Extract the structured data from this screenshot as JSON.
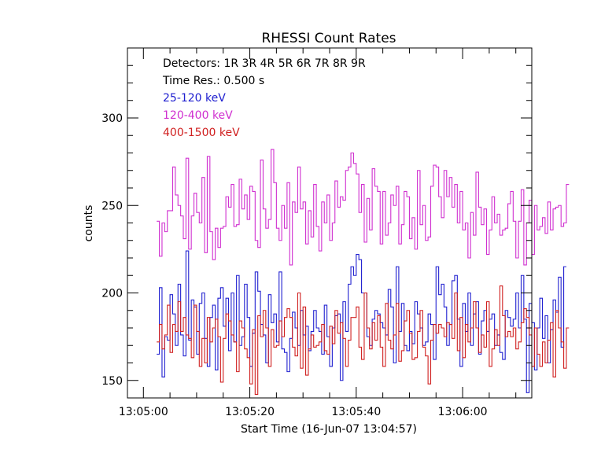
{
  "chart_data": {
    "type": "line",
    "title": "RHESSI Count Rates",
    "xlabel": "Start Time (16-Jun-07 13:04:57)",
    "ylabel": "counts",
    "grid": false,
    "legend_placement": "top-left",
    "x_unit": "seconds since 13:05:00",
    "x_tick_values": [
      0,
      20,
      40,
      60
    ],
    "x_tick_labels": [
      "13:05:00",
      "13:05:20",
      "13:05:40",
      "13:06:00"
    ],
    "xlim": [
      -3,
      73
    ],
    "ylim": [
      140,
      340
    ],
    "y_ticks": [
      150,
      200,
      250,
      300
    ],
    "info_lines": [
      "Detectors:  1R 3R 4R 5R 6R 7R 8R 9R",
      "Time Res.: 0.500 s"
    ],
    "x_start": 2.5,
    "dt": 0.5,
    "series": [
      {
        "name": "25-120 keV",
        "color": "#2020d0",
        "values": [
          165,
          203,
          152,
          175,
          173,
          199,
          188,
          170,
          205,
          176,
          164,
          224,
          173,
          196,
          192,
          165,
          194,
          200,
          174,
          158,
          186,
          193,
          156,
          197,
          203,
          181,
          197,
          167,
          200,
          172,
          210,
          170,
          175,
          205,
          186,
          158,
          177,
          212,
          201,
          182,
          176,
          160,
          199,
          183,
          188,
          172,
          212,
          168,
          166,
          155,
          174,
          189,
          180,
          170,
          190,
          176,
          181,
          167,
          178,
          190,
          180,
          178,
          165,
          193,
          175,
          158,
          180,
          187,
          188,
          150,
          195,
          178,
          205,
          215,
          210,
          222,
          219,
          200,
          200,
          175,
          170,
          185,
          190,
          188,
          183,
          180,
          176,
          202,
          192,
          160,
          215,
          178,
          194,
          170,
          167,
          178,
          171,
          195,
          188,
          180,
          170,
          172,
          188,
          182,
          162,
          215,
          199,
          205,
          192,
          170,
          182,
          207,
          210,
          185,
          158,
          194,
          178,
          200,
          170,
          188,
          195,
          165,
          184,
          190,
          178,
          185,
          188,
          170,
          176,
          166,
          162,
          190,
          186,
          181,
          185,
          200,
          180,
          210,
          185,
          143,
          194,
          183,
          156,
          180,
          197,
          174,
          187,
          160,
          179,
          196,
          189,
          209,
          169,
          215
        ]
      },
      {
        "name": "120-400 keV",
        "color": "#d030d0",
        "values": [
          241,
          221,
          240,
          235,
          247,
          247,
          272,
          256,
          250,
          244,
          231,
          277,
          225,
          244,
          257,
          246,
          240,
          266,
          223,
          278,
          235,
          219,
          237,
          226,
          237,
          238,
          255,
          249,
          262,
          238,
          239,
          265,
          248,
          256,
          242,
          261,
          258,
          230,
          226,
          276,
          248,
          237,
          242,
          282,
          263,
          237,
          230,
          250,
          237,
          263,
          216,
          252,
          246,
          272,
          248,
          252,
          228,
          247,
          232,
          262,
          238,
          224,
          252,
          240,
          256,
          230,
          240,
          264,
          249,
          255,
          253,
          270,
          272,
          280,
          274,
          268,
          246,
          262,
          229,
          254,
          236,
          271,
          261,
          258,
          228,
          258,
          233,
          240,
          256,
          250,
          261,
          228,
          239,
          258,
          255,
          231,
          243,
          225,
          270,
          239,
          250,
          230,
          232,
          261,
          273,
          272,
          255,
          243,
          270,
          255,
          266,
          249,
          262,
          240,
          258,
          236,
          240,
          220,
          246,
          233,
          269,
          249,
          239,
          248,
          222,
          236,
          255,
          240,
          245,
          233,
          236,
          237,
          251,
          258,
          241,
          220,
          241,
          259,
          216,
          240,
          253,
          222,
          250,
          236,
          238,
          243,
          234,
          252,
          236,
          248,
          249,
          250,
          238,
          240,
          262
        ]
      },
      {
        "name": "400-1500 keV",
        "color": "#d02020",
        "values": [
          172,
          182,
          168,
          176,
          193,
          166,
          182,
          178,
          195,
          178,
          186,
          176,
          174,
          163,
          193,
          178,
          158,
          174,
          160,
          186,
          172,
          180,
          185,
          175,
          149,
          174,
          188,
          184,
          176,
          172,
          155,
          184,
          180,
          168,
          163,
          148,
          179,
          142,
          187,
          175,
          190,
          180,
          158,
          179,
          169,
          170,
          184,
          175,
          186,
          191,
          186,
          169,
          164,
          200,
          157,
          192,
          153,
          168,
          176,
          169,
          170,
          172,
          182,
          167,
          165,
          181,
          171,
          190,
          177,
          183,
          174,
          158,
          173,
          186,
          186,
          192,
          169,
          162,
          200,
          180,
          168,
          183,
          173,
          187,
          169,
          158,
          194,
          173,
          168,
          176,
          194,
          161,
          167,
          184,
          190,
          177,
          162,
          163,
          178,
          190,
          169,
          164,
          148,
          173,
          182,
          177,
          182,
          180,
          175,
          183,
          182,
          174,
          200,
          167,
          186,
          163,
          182,
          172,
          180,
          195,
          180,
          166,
          176,
          169,
          195,
          158,
          168,
          179,
          170,
          204,
          187,
          175,
          178,
          175,
          180,
          168,
          172,
          183,
          191,
          186,
          176,
          158,
          180,
          165,
          158,
          172,
          160,
          173,
          183,
          152,
          190,
          180,
          172,
          157,
          180
        ]
      }
    ]
  }
}
